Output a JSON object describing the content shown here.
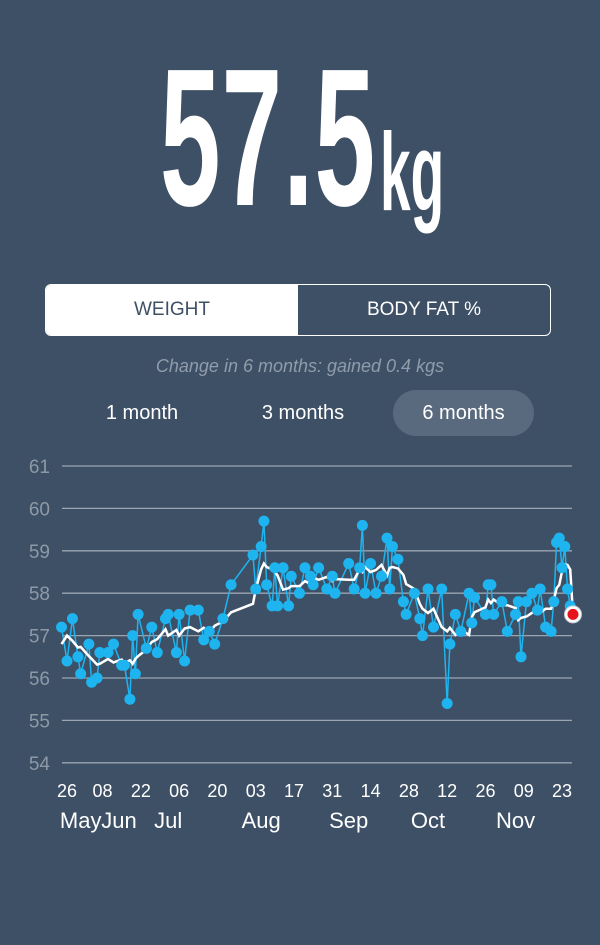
{
  "header": {
    "value": "57.5",
    "unit": "kg"
  },
  "metric_toggle": {
    "items": [
      {
        "label": "WEIGHT",
        "selected": true
      },
      {
        "label": "BODY FAT %",
        "selected": false
      }
    ]
  },
  "change_text": "Change in 6 months: gained 0.4 kgs",
  "ranges": [
    {
      "label": "1 month",
      "selected": false
    },
    {
      "label": "3 months",
      "selected": false
    },
    {
      "label": "6 months",
      "selected": true
    }
  ],
  "colors": {
    "background": "#3e5066",
    "points": "#1eb4f0",
    "trend": "#ffffff",
    "latest": "#e8141c",
    "grid": "#9aa5b1"
  },
  "chart_data": {
    "type": "line",
    "ylim": [
      54,
      61
    ],
    "y_ticks": [
      "61",
      "60",
      "59",
      "58",
      "57",
      "56",
      "55",
      "54"
    ],
    "x_ticks": [
      {
        "date": "05-26",
        "label": "26"
      },
      {
        "date": "06-08",
        "label": "08"
      },
      {
        "date": "06-22",
        "label": "22"
      },
      {
        "date": "07-06",
        "label": "06"
      },
      {
        "date": "07-20",
        "label": "20"
      },
      {
        "date": "08-03",
        "label": "03"
      },
      {
        "date": "08-17",
        "label": "17"
      },
      {
        "date": "08-31",
        "label": "31"
      },
      {
        "date": "09-14",
        "label": "14"
      },
      {
        "date": "09-28",
        "label": "28"
      },
      {
        "date": "10-12",
        "label": "12"
      },
      {
        "date": "10-26",
        "label": "26"
      },
      {
        "date": "11-09",
        "label": "09"
      },
      {
        "date": "11-23",
        "label": "23"
      }
    ],
    "month_labels": [
      {
        "date": "05-31",
        "label": "May"
      },
      {
        "date": "06-14",
        "label": "Jun"
      },
      {
        "date": "07-02",
        "label": "Jul"
      },
      {
        "date": "08-05",
        "label": "Aug"
      },
      {
        "date": "09-06",
        "label": "Sep"
      },
      {
        "date": "10-05",
        "label": "Oct"
      },
      {
        "date": "11-06",
        "label": "Nov"
      }
    ],
    "points": [
      [
        "05-24",
        57.2
      ],
      [
        "05-26",
        56.4
      ],
      [
        "05-28",
        57.4
      ],
      [
        "05-30",
        56.5
      ],
      [
        "05-31",
        56.1
      ],
      [
        "06-03",
        56.8
      ],
      [
        "06-04",
        55.9
      ],
      [
        "06-06",
        56.0
      ],
      [
        "06-07",
        56.6
      ],
      [
        "06-10",
        56.6
      ],
      [
        "06-12",
        56.8
      ],
      [
        "06-15",
        56.3
      ],
      [
        "06-16",
        56.3
      ],
      [
        "06-18",
        55.5
      ],
      [
        "06-19",
        57.0
      ],
      [
        "06-20",
        56.1
      ],
      [
        "06-21",
        57.5
      ],
      [
        "06-24",
        56.7
      ],
      [
        "06-26",
        57.2
      ],
      [
        "06-28",
        56.6
      ],
      [
        "07-01",
        57.4
      ],
      [
        "07-02",
        57.5
      ],
      [
        "07-05",
        56.6
      ],
      [
        "07-06",
        57.5
      ],
      [
        "07-08",
        56.4
      ],
      [
        "07-10",
        57.6
      ],
      [
        "07-13",
        57.6
      ],
      [
        "07-15",
        56.9
      ],
      [
        "07-17",
        57.1
      ],
      [
        "07-19",
        56.8
      ],
      [
        "07-22",
        57.4
      ],
      [
        "07-25",
        58.2
      ],
      [
        "08-02",
        58.9
      ],
      [
        "08-03",
        58.1
      ],
      [
        "08-05",
        59.1
      ],
      [
        "08-06",
        59.7
      ],
      [
        "08-07",
        58.2
      ],
      [
        "08-09",
        57.7
      ],
      [
        "08-10",
        58.6
      ],
      [
        "08-11",
        57.7
      ],
      [
        "08-13",
        58.6
      ],
      [
        "08-15",
        57.7
      ],
      [
        "08-16",
        58.4
      ],
      [
        "08-19",
        58.0
      ],
      [
        "08-21",
        58.6
      ],
      [
        "08-23",
        58.4
      ],
      [
        "08-24",
        58.2
      ],
      [
        "08-26",
        58.6
      ],
      [
        "08-29",
        58.1
      ],
      [
        "08-31",
        58.4
      ],
      [
        "09-01",
        58.0
      ],
      [
        "09-06",
        58.7
      ],
      [
        "09-08",
        58.1
      ],
      [
        "09-10",
        58.6
      ],
      [
        "09-11",
        59.6
      ],
      [
        "09-12",
        58.0
      ],
      [
        "09-14",
        58.7
      ],
      [
        "09-16",
        58.0
      ],
      [
        "09-18",
        58.4
      ],
      [
        "09-20",
        59.3
      ],
      [
        "09-21",
        58.1
      ],
      [
        "09-22",
        59.1
      ],
      [
        "09-24",
        58.8
      ],
      [
        "09-26",
        57.8
      ],
      [
        "09-27",
        57.5
      ],
      [
        "09-30",
        58.0
      ],
      [
        "10-02",
        57.4
      ],
      [
        "10-03",
        57.0
      ],
      [
        "10-05",
        58.1
      ],
      [
        "10-07",
        57.2
      ],
      [
        "10-10",
        58.1
      ],
      [
        "10-12",
        55.4
      ],
      [
        "10-13",
        56.8
      ],
      [
        "10-15",
        57.5
      ],
      [
        "10-17",
        57.1
      ],
      [
        "10-20",
        58.0
      ],
      [
        "10-21",
        57.3
      ],
      [
        "10-22",
        57.9
      ],
      [
        "10-26",
        57.5
      ],
      [
        "10-27",
        58.2
      ],
      [
        "10-28",
        58.2
      ],
      [
        "10-29",
        57.5
      ],
      [
        "11-01",
        57.8
      ],
      [
        "11-03",
        57.1
      ],
      [
        "11-06",
        57.5
      ],
      [
        "11-07",
        57.8
      ],
      [
        "11-08",
        56.5
      ],
      [
        "11-10",
        57.8
      ],
      [
        "11-12",
        58.0
      ],
      [
        "11-14",
        57.6
      ],
      [
        "11-15",
        58.1
      ],
      [
        "11-17",
        57.2
      ],
      [
        "11-19",
        57.1
      ],
      [
        "11-20",
        57.8
      ],
      [
        "11-21",
        59.2
      ],
      [
        "11-22",
        59.3
      ],
      [
        "11-23",
        58.6
      ],
      [
        "11-24",
        59.1
      ],
      [
        "11-25",
        58.1
      ],
      [
        "11-26",
        57.7
      ]
    ],
    "latest": [
      "11-27",
      57.5
    ]
  }
}
